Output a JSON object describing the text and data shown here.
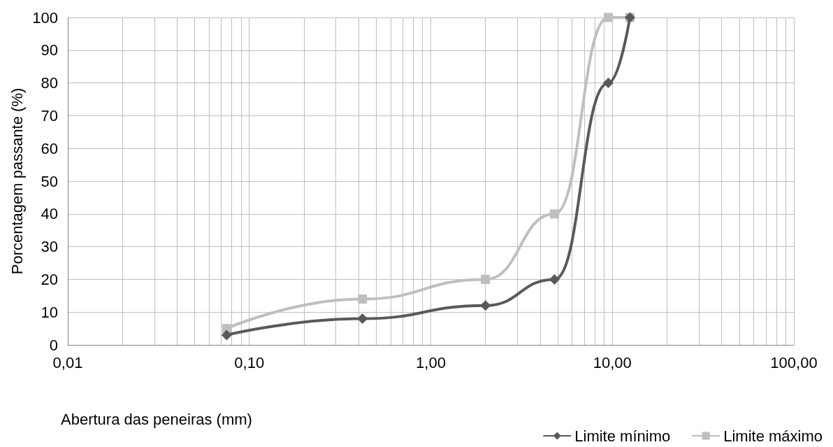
{
  "chart_data": {
    "type": "line",
    "xlabel": "Abertura das peneiras (mm)",
    "ylabel": "Porcentagem passante (%)",
    "log": "x",
    "xlim": [
      0.01,
      100
    ],
    "xticks": [
      {
        "value": 0.01,
        "label": "0,01"
      },
      {
        "value": 0.02,
        "label": null
      },
      {
        "value": 0.03,
        "label": null
      },
      {
        "value": 0.04,
        "label": null
      },
      {
        "value": 0.05,
        "label": null
      },
      {
        "value": 0.06,
        "label": null
      },
      {
        "value": 0.07,
        "label": null
      },
      {
        "value": 0.08,
        "label": null
      },
      {
        "value": 0.09,
        "label": null
      },
      {
        "value": 0.1,
        "label": "0,10"
      },
      {
        "value": 0.2,
        "label": null
      },
      {
        "value": 0.3,
        "label": null
      },
      {
        "value": 0.4,
        "label": null
      },
      {
        "value": 0.5,
        "label": null
      },
      {
        "value": 0.6,
        "label": null
      },
      {
        "value": 0.7,
        "label": null
      },
      {
        "value": 0.8,
        "label": null
      },
      {
        "value": 0.9,
        "label": null
      },
      {
        "value": 1,
        "label": "1,00"
      },
      {
        "value": 2,
        "label": null
      },
      {
        "value": 3,
        "label": null
      },
      {
        "value": 4,
        "label": null
      },
      {
        "value": 5,
        "label": null
      },
      {
        "value": 6,
        "label": null
      },
      {
        "value": 7,
        "label": null
      },
      {
        "value": 8,
        "label": null
      },
      {
        "value": 9,
        "label": null
      },
      {
        "value": 10,
        "label": "10,00"
      },
      {
        "value": 20,
        "label": null
      },
      {
        "value": 30,
        "label": null
      },
      {
        "value": 40,
        "label": null
      },
      {
        "value": 50,
        "label": null
      },
      {
        "value": 60,
        "label": null
      },
      {
        "value": 70,
        "label": null
      },
      {
        "value": 80,
        "label": null
      },
      {
        "value": 90,
        "label": null
      },
      {
        "value": 100,
        "label": "100,00"
      }
    ],
    "ylim": [
      0,
      100
    ],
    "yticks": [
      0,
      10,
      20,
      30,
      40,
      50,
      60,
      70,
      80,
      90,
      100
    ],
    "grid": true,
    "legend": "bottom right",
    "series": [
      {
        "name": "Limite mínimo",
        "color": "#595959",
        "marker": "diamond",
        "x": [
          0.075,
          0.42,
          2.0,
          4.8,
          9.5,
          12.5
        ],
        "values": [
          3,
          8,
          12,
          20,
          80,
          100
        ]
      },
      {
        "name": "Limite máximo",
        "color": "#bfbfbf",
        "marker": "square",
        "x": [
          0.075,
          0.42,
          2.0,
          4.8,
          9.5,
          12.5
        ],
        "values": [
          5,
          14,
          20,
          40,
          100,
          100
        ]
      }
    ]
  }
}
